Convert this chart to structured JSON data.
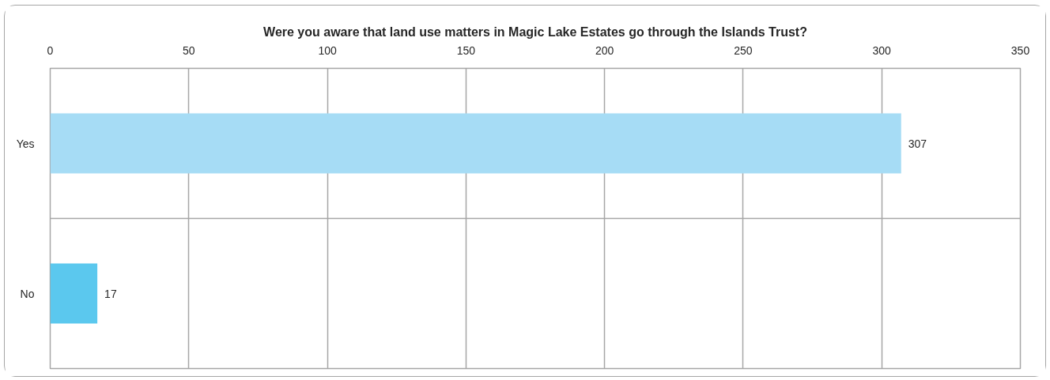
{
  "chart_data": {
    "type": "bar",
    "orientation": "horizontal",
    "title": "Were you aware that land use matters in Magic Lake Estates go through the Islands Trust?",
    "categories": [
      "Yes",
      "No"
    ],
    "values": [
      307,
      17
    ],
    "colors": [
      "#a6dcf5",
      "#5bc8ee"
    ],
    "xlim": [
      0,
      350
    ],
    "xticks": [
      0,
      50,
      100,
      150,
      200,
      250,
      300,
      350
    ],
    "grid": true,
    "data_labels": true
  }
}
